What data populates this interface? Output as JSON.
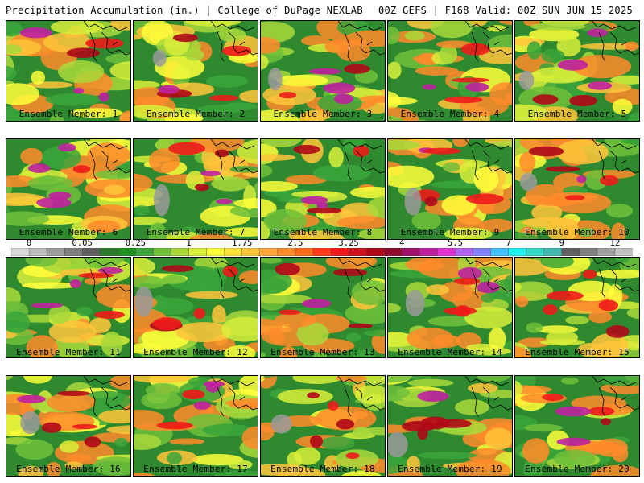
{
  "header": {
    "left": "Precipitation Accumulation (in.) | College of DuPage NEXLAB",
    "right": "00Z GEFS | F168 Valid: 00Z SUN JUN 15 2025"
  },
  "member_label": "Ensemble Member:",
  "members": [
    {
      "number": "1",
      "caption": "Ensemble Member: 1"
    },
    {
      "number": "2",
      "caption": "Ensemble Member: 2"
    },
    {
      "number": "3",
      "caption": "Ensemble Member: 3"
    },
    {
      "number": "4",
      "caption": "Ensemble Member: 4"
    },
    {
      "number": "5",
      "caption": "Ensemble Member: 5"
    },
    {
      "number": "6",
      "caption": "Ensemble Member: 6"
    },
    {
      "number": "7",
      "caption": "Ensemble Member: 7"
    },
    {
      "number": "8",
      "caption": "Ensemble Member: 8"
    },
    {
      "number": "9",
      "caption": "Ensemble Member: 9"
    },
    {
      "number": "10",
      "caption": "Ensemble Member: 10"
    },
    {
      "number": "11",
      "caption": "Ensemble Member: 11"
    },
    {
      "number": "12",
      "caption": "Ensemble Member: 12"
    },
    {
      "number": "13",
      "caption": "Ensemble Member: 13"
    },
    {
      "number": "14",
      "caption": "Ensemble Member: 14"
    },
    {
      "number": "15",
      "caption": "Ensemble Member: 15"
    },
    {
      "number": "16",
      "caption": "Ensemble Member: 16"
    },
    {
      "number": "17",
      "caption": "Ensemble Member: 17"
    },
    {
      "number": "18",
      "caption": "Ensemble Member: 18"
    },
    {
      "number": "19",
      "caption": "Ensemble Member: 19"
    },
    {
      "number": "20",
      "caption": "Ensemble Member: 20"
    }
  ],
  "colorbar": {
    "labels": [
      "0",
      "0.05",
      "0.25",
      "1",
      "1.75",
      "2.5",
      "3.25",
      "4",
      "5.5",
      "7",
      "9",
      "12"
    ],
    "colors": [
      "#d9d9d9",
      "#bdbdbd",
      "#9c9c9c",
      "#7e7e7e",
      "#5f5f5f",
      "#2e7a2e",
      "#1f8f1f",
      "#3aa53a",
      "#6fbf3a",
      "#a8d83a",
      "#d8ef3a",
      "#ffff3a",
      "#ffe23a",
      "#ffc43a",
      "#ffa63a",
      "#ff8a2a",
      "#ff6a1a",
      "#ff3a1a",
      "#ee1a1a",
      "#d0101a",
      "#b00818",
      "#900a30",
      "#a0106a",
      "#c020a0",
      "#e030d0",
      "#b060f0",
      "#8080ff",
      "#40c0ff",
      "#20f0f0",
      "#30d8c8",
      "#40b8b0",
      "#606060",
      "#808080",
      "#a0a0a0",
      "#c0c0c0"
    ]
  }
}
